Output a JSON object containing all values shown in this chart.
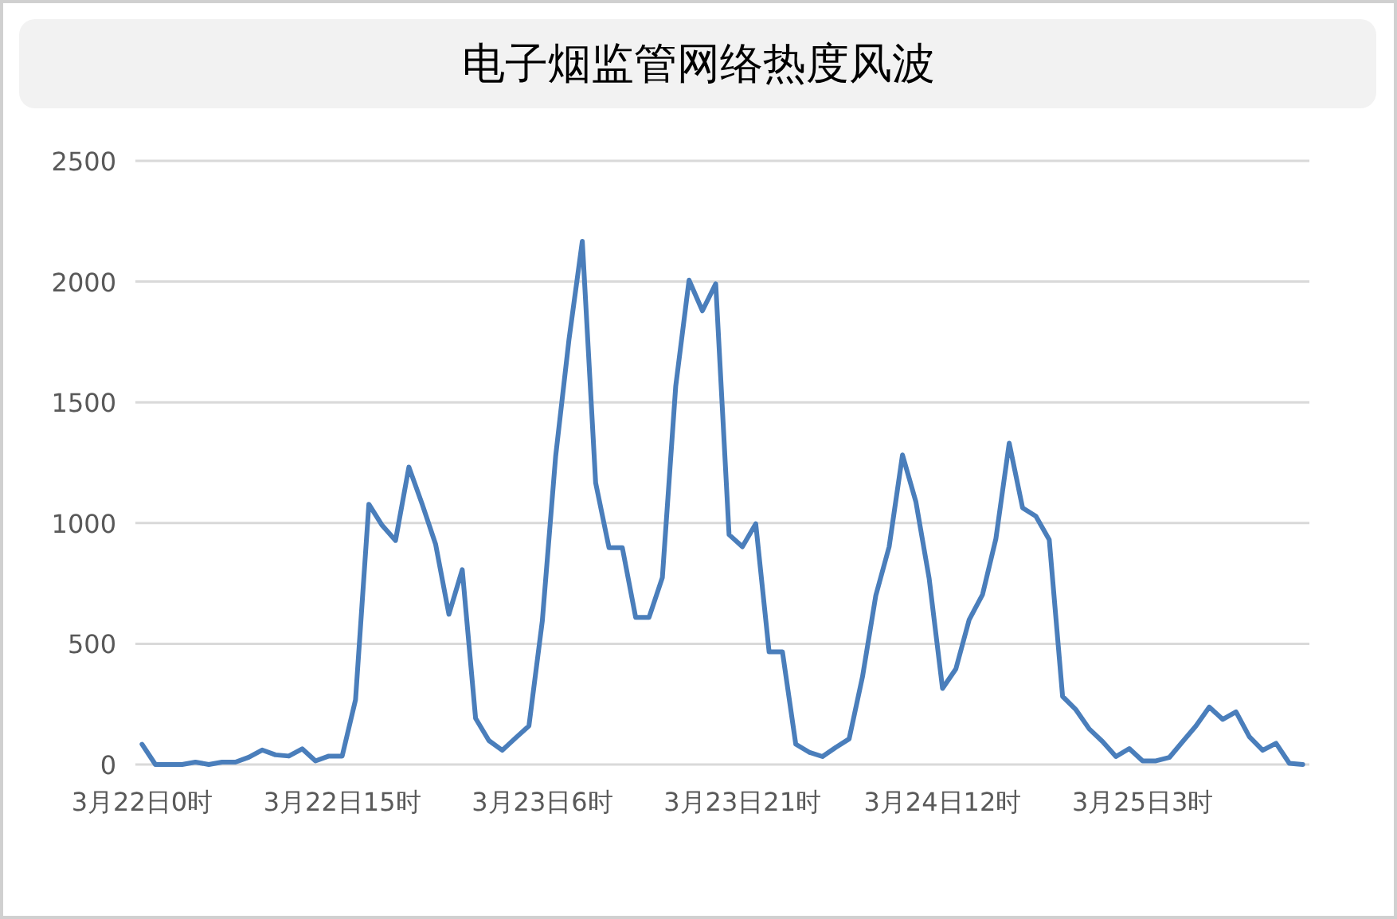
{
  "chart_data": {
    "type": "line",
    "title": "电子烟监管网络热度风波",
    "categories": [
      "3月22日0时",
      null,
      null,
      null,
      null,
      null,
      null,
      null,
      null,
      null,
      null,
      null,
      null,
      null,
      null,
      "3月22日15时",
      null,
      null,
      null,
      null,
      null,
      null,
      null,
      null,
      null,
      null,
      null,
      null,
      null,
      null,
      "3月23日6时",
      null,
      null,
      null,
      null,
      null,
      null,
      null,
      null,
      null,
      null,
      null,
      null,
      null,
      null,
      "3月23日21时",
      null,
      null,
      null,
      null,
      null,
      null,
      null,
      null,
      null,
      null,
      null,
      null,
      null,
      null,
      "3月24日12时",
      null,
      null,
      null,
      null,
      null,
      null,
      null,
      null,
      null,
      null,
      null,
      null,
      null,
      null,
      "3月25日3时",
      null,
      null,
      null,
      null,
      null,
      null,
      null,
      null,
      null,
      null,
      null,
      null
    ],
    "series": [
      {
        "color": "#4a7ebb",
        "values": [
          84,
          0,
          0,
          0,
          10,
          0,
          10,
          10,
          30,
          60,
          40,
          35,
          65,
          15,
          35,
          35,
          268,
          1078,
          990,
          928,
          1232,
          1078,
          913,
          622,
          807,
          191,
          99,
          59,
          110,
          160,
          594,
          1276,
          1760,
          2167,
          1166,
          898,
          898,
          609,
          609,
          774,
          1566,
          2006,
          1879,
          1991,
          952,
          902,
          997,
          467,
          467,
          84,
          51,
          33,
          71,
          106,
          363,
          700,
          902,
          1282,
          1089,
          770,
          315,
          396,
          600,
          704,
          935,
          1331,
          1063,
          1028,
          931,
          282,
          227,
          147,
          95,
          33,
          66,
          15,
          15,
          29,
          95,
          160,
          238,
          187,
          218,
          115,
          59,
          88,
          5,
          0
        ]
      }
    ],
    "ylim": [
      0,
      2500
    ],
    "yticks": [
      0,
      500,
      1000,
      1500,
      2000,
      2500
    ],
    "grid": "y",
    "marker": "none",
    "line_style": "solid"
  }
}
